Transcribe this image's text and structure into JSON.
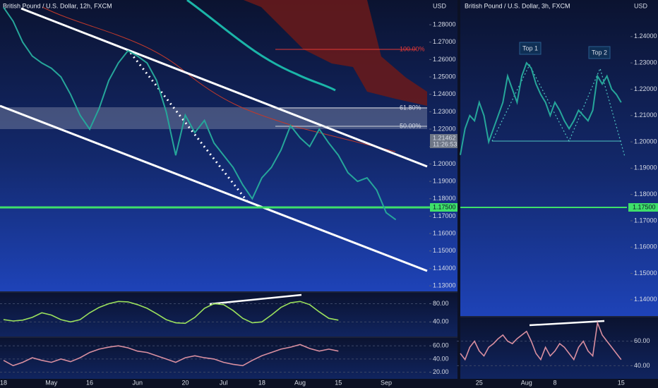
{
  "chart_data": [
    {
      "type": "line",
      "title": "British Pound / U.S. Dollar, 12h, FXCM",
      "y_label": "USD",
      "categories": [
        "18",
        null,
        null,
        null,
        null,
        "May",
        null,
        null,
        null,
        "16",
        null,
        null,
        null,
        null,
        "Jun",
        null,
        null,
        null,
        null,
        "20",
        null,
        null,
        null,
        "Jul",
        null,
        null,
        null,
        "18",
        null,
        null,
        null,
        "Aug",
        null,
        null,
        null,
        "15",
        null,
        null,
        null,
        null,
        "Sep",
        null
      ],
      "values": [
        1.29,
        1.282,
        1.27,
        1.262,
        1.258,
        1.255,
        1.25,
        1.24,
        1.228,
        1.22,
        1.232,
        1.248,
        1.258,
        1.265,
        1.262,
        1.258,
        1.248,
        1.23,
        1.205,
        1.228,
        1.218,
        1.225,
        1.212,
        1.205,
        1.198,
        1.188,
        1.18,
        1.192,
        1.198,
        1.208,
        1.222,
        1.215,
        1.21,
        1.22,
        1.212,
        1.205,
        1.195,
        1.19,
        1.192,
        1.185,
        1.172,
        1.168
      ],
      "color": "#26a69a",
      "ylim": [
        1.1268,
        1.2942
      ],
      "yticks": [
        {
          "value": 1.28,
          "label": "1.28000"
        },
        {
          "value": 1.27,
          "label": "1.27000"
        },
        {
          "value": 1.26,
          "label": "1.26000"
        },
        {
          "value": 1.25,
          "label": "1.25000"
        },
        {
          "value": 1.24,
          "label": "1.24000"
        },
        {
          "value": 1.23,
          "label": "1.23000"
        },
        {
          "value": 1.22,
          "label": "1.22000"
        },
        {
          "value": 1.21,
          "label": "1.21000"
        },
        {
          "value": 1.2,
          "label": "1.20000"
        },
        {
          "value": 1.19,
          "label": "1.19000"
        },
        {
          "value": 1.18,
          "label": "1.18000"
        },
        {
          "value": 1.17,
          "label": "1.17000"
        },
        {
          "value": 1.16,
          "label": "1.16000"
        },
        {
          "value": 1.15,
          "label": "1.15000"
        },
        {
          "value": 1.14,
          "label": "1.14000"
        },
        {
          "value": 1.13,
          "label": "1.13000"
        }
      ],
      "annotations": [
        "100.00%",
        "61.80%",
        "50.00%"
      ],
      "price_labels": [
        "1.21462",
        "11:26:53",
        "1.17500"
      ],
      "indicators": [
        {
          "color": "#9be15d",
          "values": [
            45,
            42,
            44,
            50,
            60,
            55,
            45,
            40,
            45,
            60,
            72,
            80,
            85,
            84,
            78,
            70,
            58,
            45,
            38,
            37,
            50,
            70,
            80,
            78,
            65,
            48,
            38,
            40,
            55,
            72,
            82,
            85,
            78,
            62,
            48,
            44,
            null,
            null,
            null,
            null,
            null,
            null
          ],
          "ylim": [
            8,
            104
          ],
          "yticks": [
            {
              "value": 80,
              "label": "80.00"
            },
            {
              "value": 40,
              "label": "40.00"
            }
          ]
        },
        {
          "color": "#d98fa0",
          "values": [
            38,
            30,
            35,
            42,
            38,
            35,
            40,
            36,
            42,
            50,
            55,
            58,
            60,
            57,
            52,
            50,
            45,
            40,
            35,
            42,
            45,
            42,
            40,
            35,
            32,
            30,
            38,
            45,
            50,
            55,
            58,
            62,
            56,
            52,
            55,
            52,
            null,
            null,
            null,
            null,
            null,
            null
          ],
          "ylim": [
            10,
            72
          ],
          "yticks": [
            {
              "value": 60,
              "label": "60.00"
            },
            {
              "value": 40,
              "label": "40.00"
            },
            {
              "value": 20,
              "label": "20.00"
            }
          ]
        }
      ]
    },
    {
      "type": "line",
      "title": "British Pound / U.S. Dollar, 3h, FXCM",
      "y_label": "USD",
      "categories": [
        null,
        null,
        null,
        null,
        "25",
        null,
        null,
        null,
        null,
        null,
        null,
        null,
        null,
        null,
        "Aug",
        null,
        null,
        null,
        null,
        null,
        "8",
        null,
        null,
        null,
        null,
        null,
        null,
        null,
        null,
        null,
        null,
        null,
        null,
        null,
        "15"
      ],
      "values": [
        1.195,
        1.205,
        1.21,
        1.208,
        1.215,
        1.21,
        1.2,
        1.205,
        1.21,
        1.215,
        1.225,
        1.22,
        1.215,
        1.225,
        1.23,
        1.228,
        1.222,
        1.218,
        1.215,
        1.21,
        1.215,
        1.212,
        1.208,
        1.205,
        1.208,
        1.212,
        1.21,
        1.208,
        1.212,
        1.225,
        1.222,
        1.225,
        1.22,
        1.218,
        1.215
      ],
      "color": "#26a69a",
      "ylim": [
        1.1338,
        1.2539
      ],
      "yticks": [
        {
          "value": 1.24,
          "label": "1.24000"
        },
        {
          "value": 1.23,
          "label": "1.23000"
        },
        {
          "value": 1.22,
          "label": "1.22000"
        },
        {
          "value": 1.21,
          "label": "1.21000"
        },
        {
          "value": 1.2,
          "label": "1.20000"
        },
        {
          "value": 1.19,
          "label": "1.19000"
        },
        {
          "value": 1.18,
          "label": "1.18000"
        },
        {
          "value": 1.17,
          "label": "1.17000"
        },
        {
          "value": 1.16,
          "label": "1.16000"
        },
        {
          "value": 1.15,
          "label": "1.15000"
        },
        {
          "value": 1.14,
          "label": "1.14000"
        }
      ],
      "annotations": [
        "Top 1",
        "Top 2"
      ],
      "price_labels": [
        "1.17500"
      ],
      "indicators": [
        {
          "color": "#d98fa0",
          "values": [
            50,
            45,
            55,
            60,
            52,
            48,
            55,
            58,
            62,
            65,
            60,
            58,
            62,
            65,
            68,
            60,
            50,
            45,
            55,
            48,
            52,
            58,
            55,
            50,
            45,
            55,
            60,
            52,
            48,
            75,
            65,
            60,
            55,
            50,
            45
          ],
          "ylim": [
            29.3,
            79.3
          ],
          "yticks": [
            {
              "value": 60,
              "label": "60.00"
            },
            {
              "value": 40,
              "label": "40.00"
            }
          ]
        }
      ]
    }
  ]
}
